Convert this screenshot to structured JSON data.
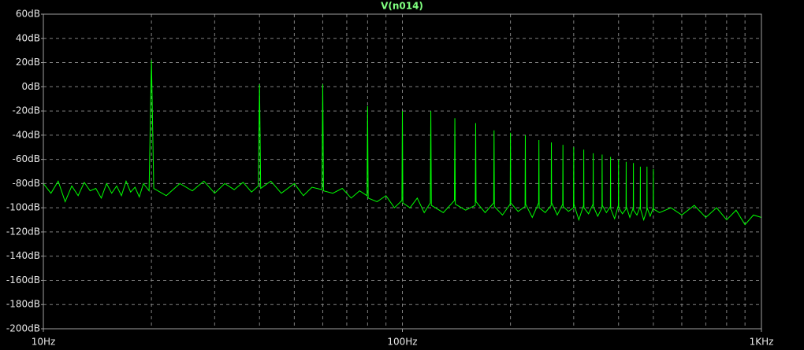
{
  "chart_data": {
    "type": "line",
    "title": "V(n014)",
    "title_color": "#7fff7f",
    "xscale": "log",
    "grid": true,
    "xlim": [
      10,
      1000
    ],
    "xticks": [
      {
        "value": 10,
        "label": "10Hz"
      },
      {
        "value": 100,
        "label": "100Hz"
      },
      {
        "value": 1000,
        "label": "1KHz"
      }
    ],
    "ylim": [
      -200,
      60
    ],
    "yticks": [
      {
        "value": 60,
        "label": "60dB"
      },
      {
        "value": 40,
        "label": "40dB"
      },
      {
        "value": 20,
        "label": "20dB"
      },
      {
        "value": 0,
        "label": "0dB"
      },
      {
        "value": -20,
        "label": "-20dB"
      },
      {
        "value": -40,
        "label": "-40dB"
      },
      {
        "value": -60,
        "label": "-60dB"
      },
      {
        "value": -80,
        "label": "-80dB"
      },
      {
        "value": -100,
        "label": "-100dB"
      },
      {
        "value": -120,
        "label": "-120dB"
      },
      {
        "value": -140,
        "label": "-140dB"
      },
      {
        "value": -160,
        "label": "-160dB"
      },
      {
        "value": -180,
        "label": "-180dB"
      },
      {
        "value": -200,
        "label": "-200dB"
      }
    ],
    "x": [
      10,
      10.5,
      11,
      11.5,
      12,
      12.5,
      13,
      13.5,
      14,
      14.5,
      15,
      15.5,
      16,
      16.5,
      17,
      17.5,
      18,
      18.5,
      19,
      19.7,
      20,
      20.3,
      22,
      24,
      26,
      28,
      30,
      32,
      34,
      36,
      38,
      39.7,
      40,
      40.3,
      43,
      46,
      50,
      53,
      56,
      59.7,
      60,
      60.3,
      64,
      68,
      72,
      76,
      79.7,
      80,
      80.3,
      85,
      90,
      95,
      99.7,
      100,
      100.3,
      105,
      110,
      115,
      119.6,
      120,
      120.4,
      130,
      139.6,
      140,
      140.4,
      150,
      159.6,
      160,
      160.4,
      170,
      179.6,
      180,
      180.4,
      190,
      199.6,
      200,
      200.4,
      210,
      219.6,
      220,
      220.4,
      230,
      239.6,
      240,
      240.4,
      250,
      259.6,
      260,
      260.4,
      270,
      279.6,
      280,
      280.4,
      290,
      299.6,
      300,
      300.4,
      310,
      319.6,
      320,
      320.4,
      330,
      339.6,
      340,
      340.4,
      350,
      359.6,
      360,
      360.4,
      370,
      379.6,
      380,
      380.4,
      390,
      399.6,
      400,
      400.4,
      410,
      419.6,
      420,
      420.4,
      430,
      439.6,
      440,
      440.4,
      450,
      459.6,
      460,
      460.4,
      470,
      479.6,
      480,
      480.4,
      490,
      499.6,
      500,
      500.4,
      520,
      560,
      600,
      650,
      700,
      750,
      800,
      850,
      900,
      950,
      1000
    ],
    "series": [
      {
        "name": "V(n014)",
        "color": "#00ff00",
        "values": [
          -80,
          -88,
          -78,
          -95,
          -82,
          -90,
          -79,
          -86,
          -84,
          -92,
          -80,
          -88,
          -82,
          -90,
          -78,
          -87,
          -83,
          -91,
          -80,
          -86,
          22,
          -84,
          -90,
          -80,
          -86,
          -78,
          -88,
          -80,
          -85,
          -79,
          -87,
          -82,
          2,
          -84,
          -78,
          -88,
          -80,
          -90,
          -83,
          -85,
          2,
          -86,
          -88,
          -84,
          -92,
          -86,
          -90,
          -16,
          -92,
          -95,
          -90,
          -100,
          -94,
          -20,
          -96,
          -100,
          -92,
          -104,
          -96,
          -20,
          -98,
          -104,
          -94,
          -26,
          -97,
          -102,
          -98,
          -30,
          -95,
          -104,
          -96,
          -36,
          -99,
          -106,
          -97,
          -38,
          -96,
          -103,
          -99,
          -40,
          -97,
          -108,
          -96,
          -44,
          -100,
          -104,
          -98,
          -46,
          -96,
          -106,
          -97,
          -48,
          -99,
          -103,
          -100,
          -50,
          -97,
          -110,
          -98,
          -52,
          -100,
          -105,
          -97,
          -55,
          -99,
          -107,
          -100,
          -56,
          -98,
          -104,
          -99,
          -58,
          -101,
          -109,
          -98,
          -60,
          -100,
          -105,
          -101,
          -62,
          -99,
          -108,
          -100,
          -63,
          -102,
          -106,
          -99,
          -66,
          -101,
          -110,
          -102,
          -66,
          -100,
          -107,
          -100,
          -68,
          -101,
          -104,
          -100,
          -106,
          -98,
          -108,
          -100,
          -110,
          -102,
          -114,
          -106,
          -108
        ]
      }
    ]
  }
}
